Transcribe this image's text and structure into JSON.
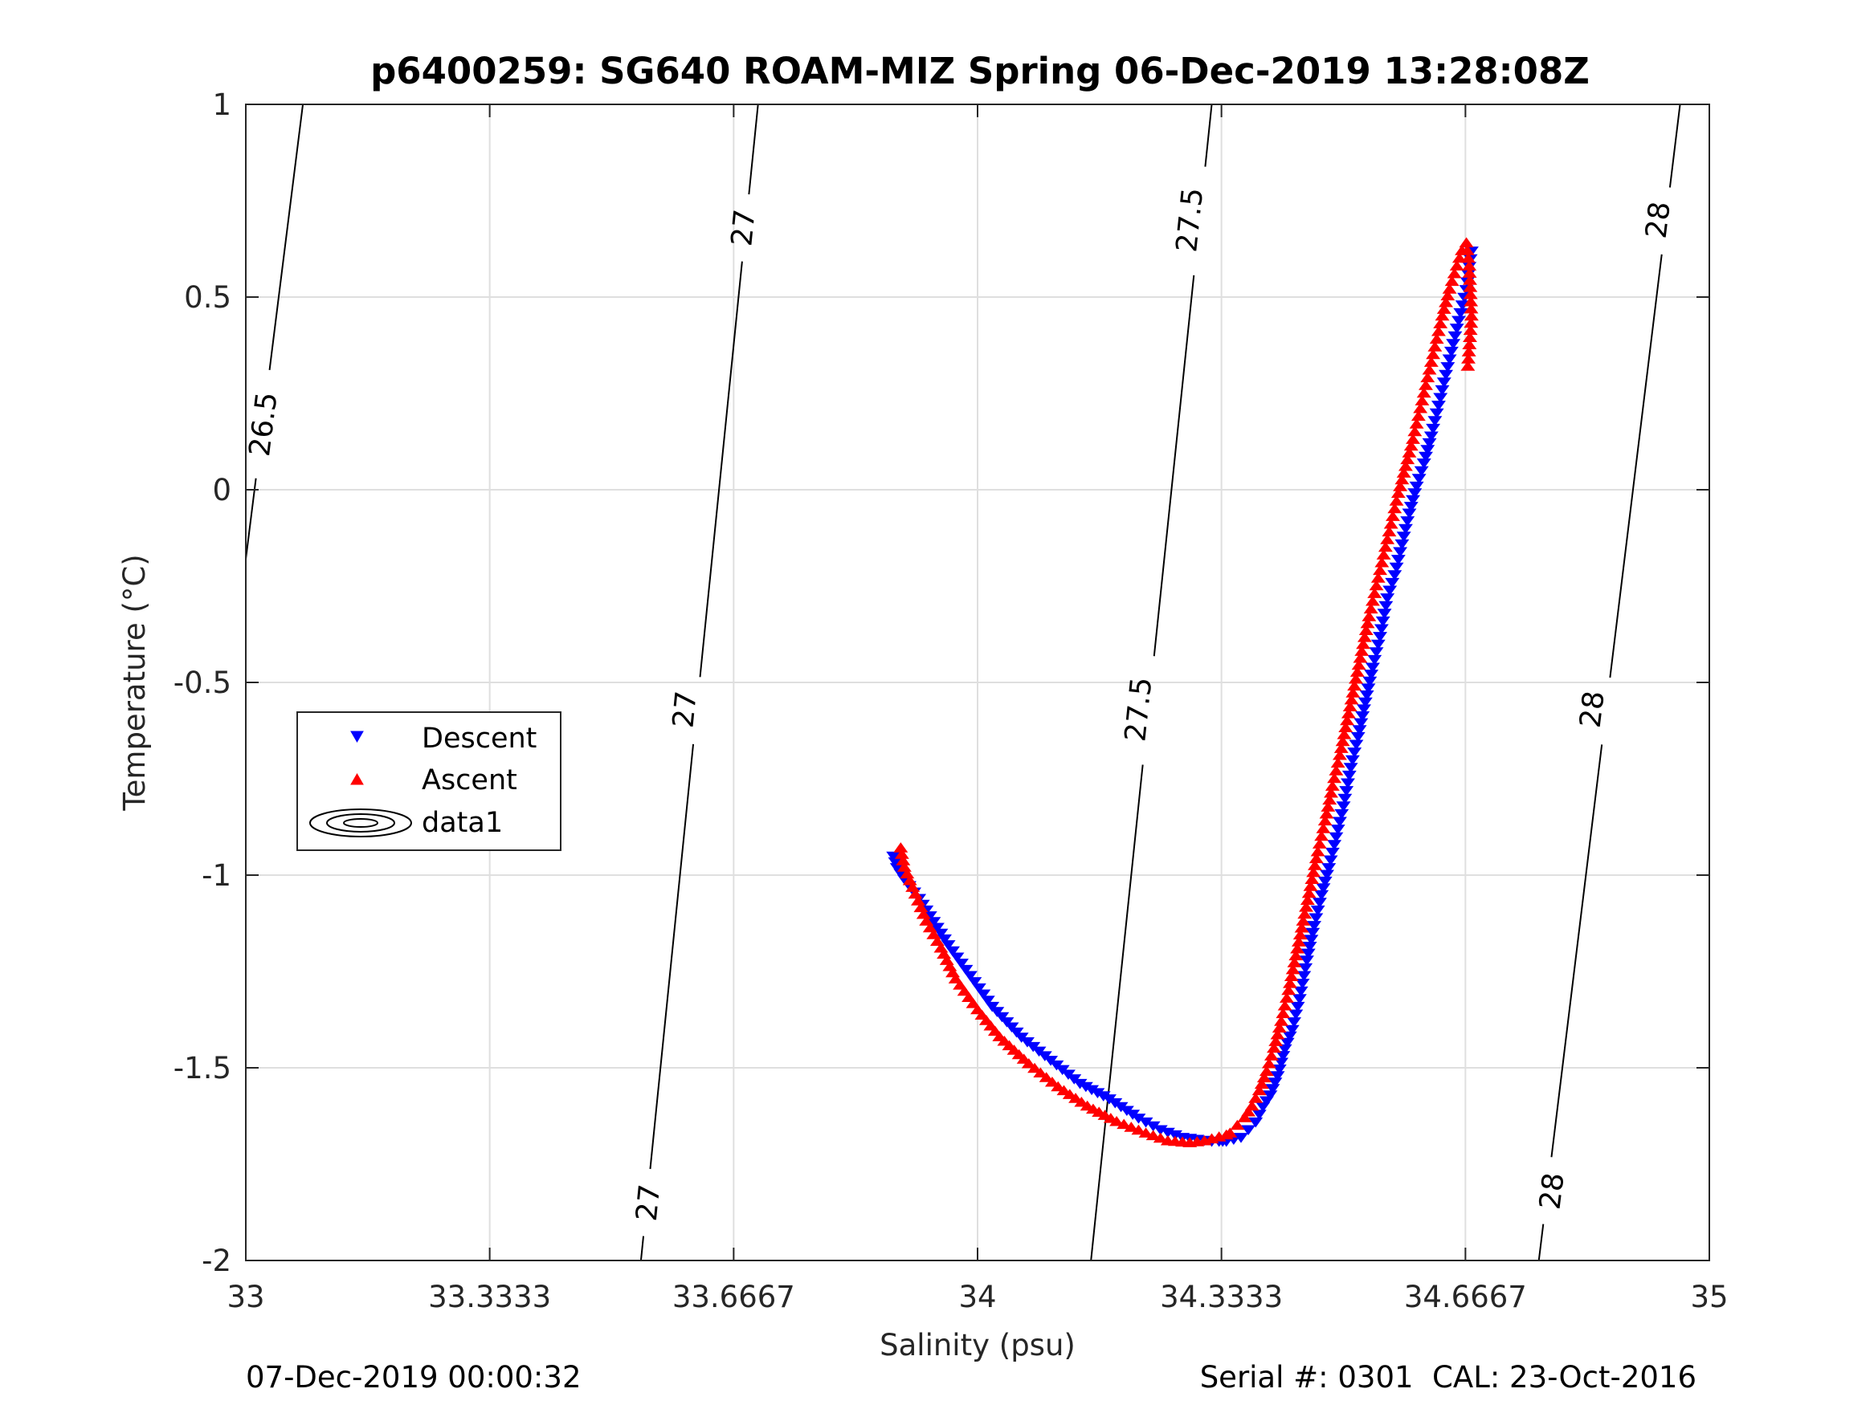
{
  "chart_data": {
    "type": "scatter",
    "title": "p6400259: SG640 ROAM-MIZ Spring 06-Dec-2019 13:28:08Z",
    "xlabel": "Salinity (psu)",
    "ylabel": "Temperature (°C)",
    "xlim": [
      33,
      35
    ],
    "ylim": [
      -2,
      1
    ],
    "xticks": [
      33,
      33.3333,
      33.6667,
      34,
      34.3333,
      34.6667,
      35
    ],
    "xtick_labels": [
      "33",
      "33.3333",
      "33.6667",
      "34",
      "34.3333",
      "34.6667",
      "35"
    ],
    "yticks": [
      -2,
      -1.5,
      -1,
      -0.5,
      0,
      0.5,
      1
    ],
    "ytick_labels": [
      "-2",
      "-1.5",
      "-1",
      "-0.5",
      "0",
      "0.5",
      "1"
    ],
    "grid": true,
    "legend": {
      "position": "middle-left",
      "entries": [
        "Descent",
        "Ascent",
        "data1"
      ]
    },
    "contours": [
      {
        "level": "26.5",
        "points": [
          [
            33.0,
            -0.18
          ],
          [
            33.078,
            1.0
          ]
        ],
        "label_positions": [
          [
            33.024,
            0.17
          ]
        ]
      },
      {
        "level": "27",
        "points": [
          [
            33.54,
            -2.0
          ],
          [
            33.7,
            1.0
          ]
        ],
        "label_positions": [
          [
            33.55,
            -1.85
          ],
          [
            33.6,
            -0.57
          ],
          [
            33.68,
            0.68
          ]
        ]
      },
      {
        "level": "27.5",
        "points": [
          [
            34.155,
            -2.0
          ],
          [
            34.32,
            1.0
          ]
        ],
        "label_positions": [
          [
            34.22,
            -0.57
          ],
          [
            34.29,
            0.7
          ]
        ]
      },
      {
        "level": "28",
        "points": [
          [
            34.767,
            -2.0
          ],
          [
            34.96,
            1.0
          ]
        ],
        "label_positions": [
          [
            34.785,
            -1.82
          ],
          [
            34.84,
            -0.57
          ],
          [
            34.93,
            0.7
          ]
        ]
      }
    ],
    "series": [
      {
        "name": "Descent",
        "marker": "triangle-down",
        "color": "#0000ff",
        "x": [
          34.675,
          34.672,
          34.668,
          34.66,
          34.65,
          34.64,
          34.63,
          34.62,
          34.61,
          34.6,
          34.59,
          34.58,
          34.57,
          34.56,
          34.55,
          34.54,
          34.53,
          34.52,
          34.51,
          34.5,
          34.49,
          34.48,
          34.47,
          34.46,
          34.45,
          34.44,
          34.43,
          34.42,
          34.41,
          34.4,
          34.39,
          34.38,
          34.37,
          34.36,
          34.35,
          34.34,
          34.335,
          34.33,
          34.32,
          34.3,
          34.28,
          34.25,
          34.22,
          34.18,
          34.14,
          34.1,
          34.06,
          34.02,
          33.99,
          33.96,
          33.94,
          33.92,
          33.9,
          33.89,
          33.885
        ],
        "y": [
          0.62,
          0.58,
          0.52,
          0.46,
          0.38,
          0.3,
          0.22,
          0.14,
          0.07,
          0.01,
          -0.06,
          -0.14,
          -0.22,
          -0.28,
          -0.38,
          -0.46,
          -0.55,
          -0.64,
          -0.72,
          -0.82,
          -0.9,
          -0.98,
          -1.05,
          -1.13,
          -1.22,
          -1.32,
          -1.4,
          -1.45,
          -1.52,
          -1.57,
          -1.6,
          -1.64,
          -1.66,
          -1.68,
          -1.685,
          -1.69,
          -1.69,
          -1.69,
          -1.69,
          -1.685,
          -1.68,
          -1.66,
          -1.63,
          -1.58,
          -1.54,
          -1.48,
          -1.42,
          -1.34,
          -1.26,
          -1.18,
          -1.12,
          -1.06,
          -1.01,
          -0.98,
          -0.95
        ]
      },
      {
        "name": "Ascent",
        "marker": "triangle-up",
        "color": "#ff0000",
        "x": [
          34.67,
          34.675,
          34.672,
          34.668,
          34.662,
          34.655,
          34.645,
          34.635,
          34.625,
          34.615,
          34.605,
          34.595,
          34.585,
          34.575,
          34.565,
          34.555,
          34.545,
          34.535,
          34.525,
          34.515,
          34.505,
          34.495,
          34.485,
          34.475,
          34.465,
          34.455,
          34.445,
          34.435,
          34.425,
          34.415,
          34.405,
          34.395,
          34.385,
          34.375,
          34.365,
          34.355,
          34.345,
          34.34,
          34.33,
          34.31,
          34.29,
          34.26,
          34.23,
          34.19,
          34.15,
          34.11,
          34.07,
          34.03,
          34.0,
          33.97,
          33.95,
          33.93,
          33.915,
          33.9,
          33.895
        ],
        "y": [
          0.32,
          0.45,
          0.58,
          0.64,
          0.62,
          0.58,
          0.52,
          0.45,
          0.37,
          0.29,
          0.21,
          0.13,
          0.06,
          -0.01,
          -0.09,
          -0.17,
          -0.25,
          -0.33,
          -0.42,
          -0.51,
          -0.6,
          -0.69,
          -0.77,
          -0.86,
          -0.94,
          -1.03,
          -1.12,
          -1.21,
          -1.3,
          -1.38,
          -1.45,
          -1.51,
          -1.56,
          -1.6,
          -1.63,
          -1.65,
          -1.67,
          -1.675,
          -1.68,
          -1.69,
          -1.695,
          -1.69,
          -1.67,
          -1.64,
          -1.6,
          -1.55,
          -1.49,
          -1.42,
          -1.35,
          -1.27,
          -1.19,
          -1.12,
          -1.05,
          -0.98,
          -0.93
        ]
      }
    ],
    "footer": {
      "left": "07-Dec-2019 00:00:32",
      "right": "Serial #: 0301  CAL: 23-Oct-2016"
    }
  }
}
